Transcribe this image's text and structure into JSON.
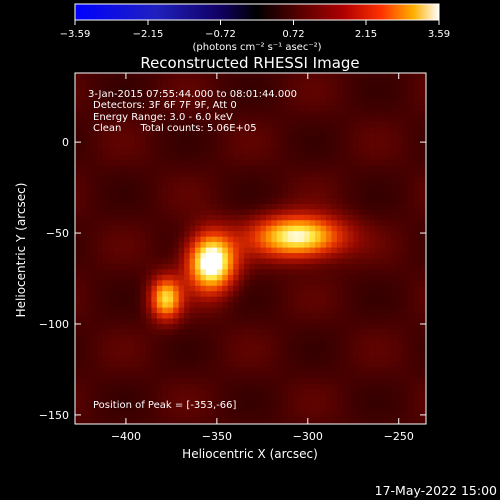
{
  "chart_data": {
    "type": "heatmap",
    "title": "Reconstructed RHESSI Image",
    "xlabel": "Heliocentric X (arcsec)",
    "ylabel": "Heliocentric Y (arcsec)",
    "xlim": [
      -428,
      -235
    ],
    "ylim": [
      -155,
      38
    ],
    "x_ticks": [
      -400,
      -350,
      -300,
      -250
    ],
    "y_ticks": [
      0,
      -50,
      -100,
      -150
    ],
    "x_tick_labels": [
      "−400",
      "−350",
      "−300",
      "−250"
    ],
    "y_tick_labels": [
      "0",
      "−50",
      "−100",
      "−150"
    ],
    "colorbar": {
      "min": -3.59,
      "max": 3.59,
      "ticks": [
        -3.59,
        -2.15,
        -0.72,
        0.72,
        2.15,
        3.59
      ],
      "tick_labels": [
        "−3.59",
        "−2.15",
        "−0.72",
        "0.72",
        "2.15",
        "3.59"
      ],
      "units_label": "(photons cm⁻² s⁻¹ asec⁻²)",
      "colormap": "hot-blue"
    },
    "sources": [
      {
        "x": -353,
        "y": -66,
        "intensity": 3.59,
        "sigma_x": 9,
        "sigma_y": 11
      },
      {
        "x": -305,
        "y": -52,
        "intensity": 3.1,
        "sigma_x": 17,
        "sigma_y": 8
      },
      {
        "x": -378,
        "y": -86,
        "intensity": 2.5,
        "sigma_x": 6,
        "sigma_y": 8
      }
    ],
    "annotations": {
      "time_range": "3-Jan-2015 07:55:44.000 to 08:01:44.000",
      "detectors": "Detectors: 3F 6F 7F 9F, Att 0",
      "energy_range": "Energy Range: 3.0 - 6.0 keV",
      "clean_counts": "Clean      Total counts: 5.06E+05",
      "peak_position": "Position of Peak = [-353,-66]"
    },
    "footer_date": "17-May-2022 15:00"
  },
  "colors": {
    "background": "#000000",
    "text": "#ffffff",
    "colormap_low": "#0000ff",
    "colormap_mid": "#000000",
    "colormap_high": "#ffffff"
  }
}
